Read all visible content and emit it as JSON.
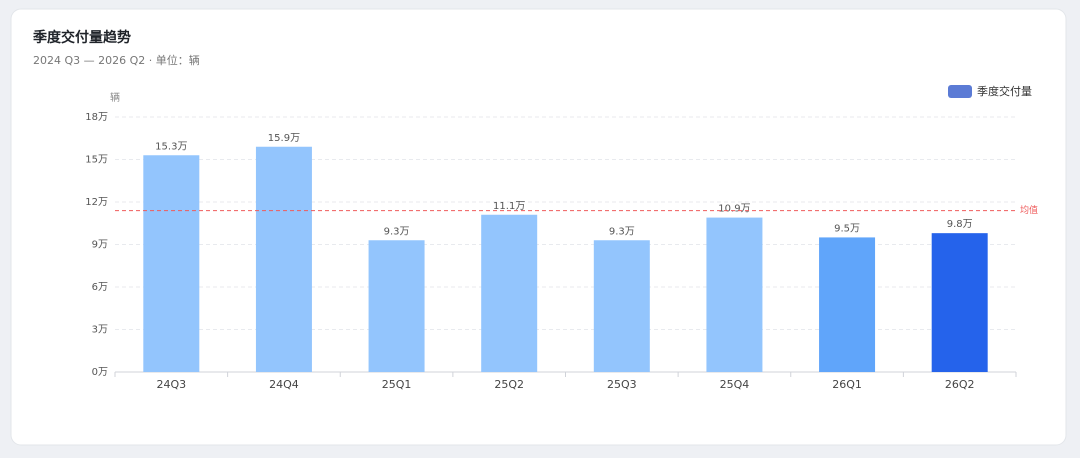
{
  "chart_data": {
    "type": "bar",
    "title": "季度交付量趋势",
    "subtitle": "2024 Q3 — 2026 Q2 · 单位：辆",
    "y_axis_label": "辆",
    "categories": [
      "24Q3",
      "24Q4",
      "25Q1",
      "25Q2",
      "25Q3",
      "25Q4",
      "26Q1",
      "26Q2"
    ],
    "series": [
      {
        "name": "季度交付量",
        "color": "#5b7bd5",
        "values": [
          15.3,
          15.9,
          9.3,
          11.1,
          9.3,
          10.9,
          9.5,
          9.8
        ],
        "value_labels": [
          "15.3万",
          "15.9万",
          "9.3万",
          "11.1万",
          "9.3万",
          "10.9万",
          "9.5万",
          "9.8万"
        ],
        "colors": [
          "#93c5fd",
          "#93c5fd",
          "#93c5fd",
          "#93c5fd",
          "#93c5fd",
          "#93c5fd",
          "#60a5fa",
          "#2563eb"
        ]
      }
    ],
    "average": {
      "label": "均值",
      "value": 11.39,
      "color": "#ef5b5b"
    },
    "ylim": [
      0,
      18
    ],
    "yticks": [
      {
        "value": 0,
        "label": "0万"
      },
      {
        "value": 3,
        "label": "3万"
      },
      {
        "value": 6,
        "label": "6万"
      },
      {
        "value": 9,
        "label": "9万"
      },
      {
        "value": 12,
        "label": "12万"
      },
      {
        "value": 15,
        "label": "15万"
      },
      {
        "value": 18,
        "label": "18万"
      }
    ],
    "grid": true,
    "legend": "top-right"
  }
}
